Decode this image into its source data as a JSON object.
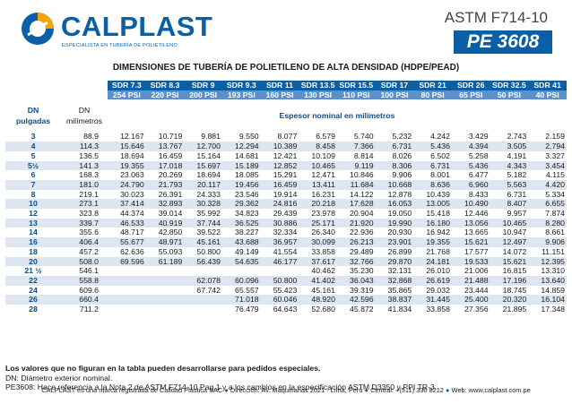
{
  "header": {
    "logo_text": "CALPLAST",
    "logo_tagline": "ESPECIALISTA EN TUBERÍA DE POLIETILENO",
    "standard": "ASTM F714-10",
    "code": "PE 3608",
    "brand_color": "#0b5fa5"
  },
  "title": "DIMENSIONES DE TUBERÍA DE POLIETILENO DE ALTA DENSIDAD (HDPE/PEAD)",
  "table": {
    "sdr": [
      "SDR 7.3",
      "SDR 8.3",
      "SDR 9",
      "SDR 9.3",
      "SDR 11",
      "SDR 13.5",
      "SDR 15.5",
      "SDR 17",
      "SDR 21",
      "SDR 26",
      "SDR 32.5",
      "SDR 41"
    ],
    "psi": [
      "254 PSI",
      "220 PSI",
      "200 PSI",
      "193 PSI",
      "160 PSI",
      "130 PSI",
      "110 PSI",
      "100 PSI",
      "80 PSI",
      "65 PSI",
      "50 PSI",
      "40 PSI"
    ],
    "col1_header": [
      "DN",
      "pulgadas"
    ],
    "col2_header": [
      "DN",
      "milímetros"
    ],
    "espesor_header": "Espesor nominal en milímetros",
    "rows": [
      [
        "3",
        "88.9",
        "12.167",
        "10.719",
        "9.881",
        "9.550",
        "8.077",
        "6.579",
        "5.740",
        "5.232",
        "4.242",
        "3.429",
        "2.743",
        "2.159"
      ],
      [
        "4",
        "114.3",
        "15.646",
        "13.767",
        "12.700",
        "12.294",
        "10.389",
        "8.458",
        "7.366",
        "6.731",
        "5.436",
        "4.394",
        "3.505",
        "2.794"
      ],
      [
        "5",
        "136.5",
        "18.694",
        "16.459",
        "15.164",
        "14.681",
        "12.421",
        "10.109",
        "8.814",
        "8.026",
        "6.502",
        "5.258",
        "4.191",
        "3.327"
      ],
      [
        "5½",
        "141.3",
        "19.355",
        "17.018",
        "15.697",
        "15.189",
        "12.852",
        "10.465",
        "9.119",
        "8.306",
        "6.731",
        "5.436",
        "4.343",
        "3.454"
      ],
      [
        "6",
        "168.3",
        "23.063",
        "20.269",
        "18.694",
        "18.085",
        "15.291",
        "12.471",
        "10.846",
        "9.906",
        "8.001",
        "6.477",
        "5.182",
        "4.115"
      ],
      [
        "7",
        "181.0",
        "24.790",
        "21.793",
        "20.117",
        "19.456",
        "16.459",
        "13.411",
        "11.684",
        "10.668",
        "8.636",
        "6.960",
        "5.563",
        "4.420"
      ],
      [
        "8",
        "219.1",
        "30.023",
        "26.391",
        "24.333",
        "23.546",
        "19.914",
        "16.231",
        "14.122",
        "12.878",
        "10.439",
        "8.433",
        "6.731",
        "5.334"
      ],
      [
        "10",
        "273.1",
        "37.414",
        "32.893",
        "30.328",
        "29.362",
        "24.816",
        "20.218",
        "17.628",
        "16.053",
        "13.005",
        "10.490",
        "8.407",
        "6.655"
      ],
      [
        "12",
        "323.8",
        "44.374",
        "39.014",
        "35.992",
        "34.823",
        "29.439",
        "23.978",
        "20.904",
        "19.050",
        "15.418",
        "12.446",
        "9.957",
        "7.874"
      ],
      [
        "13",
        "339.7",
        "46.533",
        "40.919",
        "37.744",
        "36.525",
        "30.886",
        "25.171",
        "21.920",
        "19.990",
        "16.180",
        "13.056",
        "10.465",
        "8.280"
      ],
      [
        "14",
        "355.6",
        "48.717",
        "42.850",
        "39.522",
        "38.227",
        "32.334",
        "26.340",
        "22.936",
        "20.930",
        "16.942",
        "13.665",
        "10.947",
        "8.661"
      ],
      [
        "16",
        "406.4",
        "55.677",
        "48.971",
        "45.161",
        "43.688",
        "36.957",
        "30.099",
        "26.213",
        "23.901",
        "19.355",
        "15.621",
        "12.497",
        "9.906"
      ],
      [
        "18",
        "457.2",
        "62.636",
        "55.093",
        "50.800",
        "49.149",
        "41.554",
        "33.858",
        "29.489",
        "26.899",
        "21.768",
        "17.577",
        "14.072",
        "11.151"
      ],
      [
        "20",
        "508.0",
        "69.596",
        "61.189",
        "56.439",
        "54.635",
        "46.177",
        "37.617",
        "32.766",
        "29.870",
        "24.181",
        "19.533",
        "15.621",
        "12.395"
      ],
      [
        "21 ½",
        "546.1",
        "",
        "",
        "",
        "",
        "",
        "40.462",
        "35.230",
        "32.131",
        "26.010",
        "21.006",
        "16.815",
        "13.310"
      ],
      [
        "22",
        "558.8",
        "",
        "",
        "62.078",
        "60.096",
        "50.800",
        "41.402",
        "36.043",
        "32.868",
        "26.619",
        "21.488",
        "17.196",
        "13.640"
      ],
      [
        "24",
        "609.6",
        "",
        "",
        "67.742",
        "65.557",
        "55.423",
        "45.161",
        "39.319",
        "35.865",
        "29.032",
        "23.444",
        "18.745",
        "14.859"
      ],
      [
        "26",
        "660.4",
        "",
        "",
        "",
        "71.018",
        "60.046",
        "48.920",
        "42.596",
        "38.837",
        "31.445",
        "25.400",
        "20.320",
        "16.104"
      ],
      [
        "28",
        "711.2",
        "",
        "",
        "",
        "76.479",
        "64.643",
        "52.680",
        "45.872",
        "41.834",
        "33.858",
        "27.356",
        "21.895",
        "17.348"
      ]
    ]
  },
  "notes": {
    "bold": "Los valores que no figuran en la tabla pueden desarrollarse para pedidos especiales.",
    "dn": "DN: Diámetro exterior nominal.",
    "pe": "PE3608: Hace referencia a la Nota 2 de ASTM F714-10 Pag.1 y a los cambios en la especificación ASTM D3350 y PPI TR-3."
  },
  "footer": {
    "part1": "CALPLAST es una marca registrada de Calidad Plástica SAC",
    "part2": "Dirección: Av. Maquinarias 2021 - Lima, Perú",
    "part3": "Central: +(511) 336 8212",
    "part4": "Web: www.calplast.com.pe"
  }
}
